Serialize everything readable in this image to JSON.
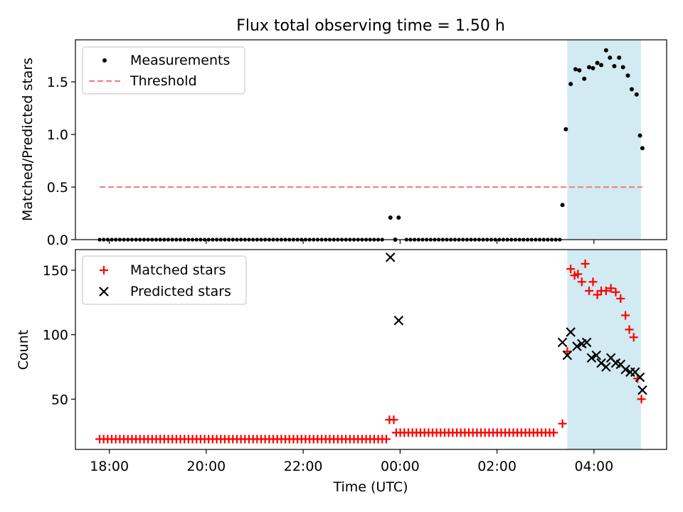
{
  "chart_data": {
    "title": "Flux total observing time = 1.50 h",
    "xlabel": "Time (UTC)",
    "x_tick_labels": [
      "18:00",
      "20:00",
      "22:00",
      "00:00",
      "02:00",
      "04:00"
    ],
    "x_ticks_hours": [
      18,
      20,
      22,
      24,
      26,
      28
    ],
    "xlim_hours": [
      17.3,
      29.5
    ],
    "highlight_span_hours": [
      27.45,
      28.97
    ],
    "colors": {
      "highlight": "#add8e6",
      "measurements": "#000000",
      "threshold": "#f08080",
      "matched": "#ff0000",
      "predicted": "#000000"
    },
    "panels": [
      {
        "type": "scatter",
        "ylabel": "Matched/Predicted stars",
        "ylim": [
          0,
          1.9
        ],
        "y_ticks": [
          0.0,
          0.5,
          1.0,
          1.5
        ],
        "y_tick_labels": [
          "0.0",
          "0.5",
          "1.0",
          "1.5"
        ],
        "legend": [
          "Measurements",
          "Threshold"
        ],
        "legend_position": "top-left",
        "threshold": {
          "value": 0.5,
          "x_range": [
            17.8,
            29.0
          ]
        },
        "baseline_zero": {
          "x_start": 17.8,
          "x_end": 27.3,
          "step": 0.0833
        },
        "series": [
          {
            "name": "Measurements",
            "x": [
              23.8,
              23.9,
              23.97,
              27.35,
              27.42,
              27.52,
              27.62,
              27.7,
              27.8,
              27.9,
              27.98,
              28.07,
              28.15,
              28.25,
              28.33,
              28.42,
              28.52,
              28.6,
              28.7,
              28.78,
              28.88,
              28.95
            ],
            "y": [
              0.21,
              0.0,
              0.21,
              0.33,
              1.05,
              1.48,
              1.62,
              1.61,
              1.53,
              1.64,
              1.63,
              1.68,
              1.66,
              1.8,
              1.73,
              1.65,
              1.73,
              1.64,
              1.56,
              1.43,
              1.38,
              0.99
            ]
          }
        ],
        "extra_point": {
          "x": 29.0,
          "y": 0.87
        }
      },
      {
        "type": "scatter",
        "ylabel": "Count",
        "ylim": [
          11,
          166
        ],
        "y_ticks": [
          50,
          100,
          150
        ],
        "y_tick_labels": [
          "50",
          "100",
          "150"
        ],
        "legend": [
          "Matched stars",
          "Predicted stars"
        ],
        "legend_position": "top-left",
        "matched_low": {
          "x_start": 17.8,
          "x_end": 23.72,
          "step": 0.0833,
          "value": 19
        },
        "matched_mid": {
          "x_start": 23.92,
          "x_end": 27.25,
          "step": 0.0833,
          "value": 24
        },
        "series": [
          {
            "name": "Matched stars",
            "x": [
              23.78,
              23.87,
              27.35,
              27.45,
              27.52,
              27.6,
              27.67,
              27.75,
              27.82,
              27.9,
              27.98,
              28.07,
              28.15,
              28.25,
              28.35,
              28.45,
              28.55,
              28.65,
              28.73,
              28.82,
              28.9,
              28.98
            ],
            "y": [
              34,
              34,
              31,
              87,
              151,
              146,
              147,
              141,
              155,
              134,
              141,
              131,
              134,
              134,
              136,
              133,
              128,
              115,
              104,
              98,
              66,
              50
            ]
          },
          {
            "name": "Predicted stars",
            "x": [
              23.8,
              23.97,
              27.35,
              27.45,
              27.52,
              27.65,
              27.75,
              27.85,
              27.95,
              28.05,
              28.15,
              28.25,
              28.35,
              28.45,
              28.55,
              28.65,
              28.75,
              28.85,
              28.95,
              29.0
            ],
            "y": [
              160,
              111,
              94,
              84,
              102,
              91,
              93,
              94,
              82,
              84,
              78,
              75,
              82,
              78,
              77,
              73,
              71,
              71,
              67,
              57
            ]
          }
        ]
      }
    ]
  }
}
